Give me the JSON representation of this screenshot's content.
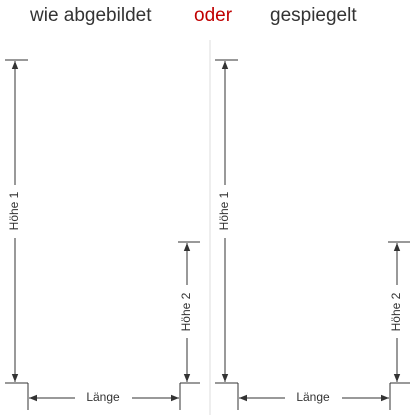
{
  "header": {
    "left": "wie abgebildet",
    "middle": "oder",
    "right": "gespiegelt"
  },
  "panels": [
    {
      "height1": "Höhe 1",
      "height2": "Höhe 2",
      "length": "Länge"
    },
    {
      "height1": "Höhe 1",
      "height2": "Höhe 2",
      "length": "Länge"
    }
  ]
}
